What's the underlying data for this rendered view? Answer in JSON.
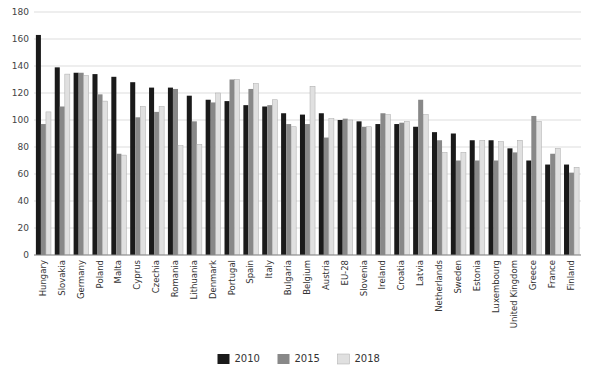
{
  "chart_data": {
    "type": "bar",
    "categories": [
      "Hungary",
      "Slovakia",
      "Germany",
      "Poland",
      "Malta",
      "Cyprus",
      "Czechia",
      "Romania",
      "Lithuania",
      "Denmark",
      "Portugal",
      "Spain",
      "Italy",
      "Bulgaria",
      "Belgium",
      "Austria",
      "EU-28",
      "Slovenia",
      "Ireland",
      "Croatia",
      "Latvia",
      "Netherlands",
      "Sweden",
      "Estonia",
      "Luxembourg",
      "United Kingdom",
      "Greece",
      "France",
      "Finland"
    ],
    "series": [
      {
        "name": "2010",
        "color": "#1a1a1a",
        "values": [
          163,
          139,
          135,
          134,
          132,
          128,
          124,
          124,
          118,
          115,
          114,
          111,
          110,
          105,
          104,
          105,
          100,
          99,
          97,
          97,
          95,
          91,
          90,
          85,
          85,
          79,
          70,
          67,
          67
        ]
      },
      {
        "name": "2015",
        "color": "#888888",
        "values": [
          97,
          110,
          135,
          119,
          75,
          102,
          106,
          123,
          99,
          113,
          130,
          123,
          111,
          97,
          97,
          87,
          101,
          95,
          105,
          98,
          115,
          85,
          70,
          70,
          70,
          76,
          103,
          75,
          61
        ]
      },
      {
        "name": "2018",
        "color": "#e0e0e0",
        "values": [
          106,
          134,
          133,
          114,
          74,
          110,
          110,
          81,
          82,
          120,
          130,
          127,
          115,
          95,
          125,
          101,
          100,
          95,
          104,
          99,
          104,
          76,
          76,
          85,
          84,
          85,
          99,
          79,
          65
        ]
      }
    ],
    "ylim": [
      0,
      180
    ],
    "yticks": [
      0,
      20,
      40,
      60,
      80,
      100,
      120,
      140,
      160,
      180
    ],
    "grid": true,
    "legend": "bottom"
  }
}
